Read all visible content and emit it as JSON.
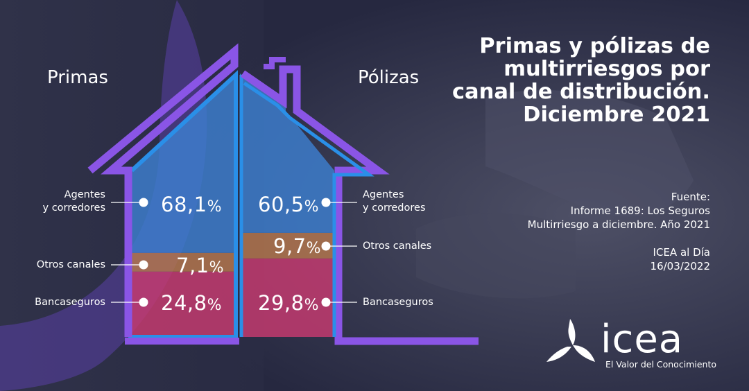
{
  "header": {
    "title_lines": [
      "Primas y pólizas de",
      "multirriesgos por",
      "canal de distribución.",
      "Diciembre 2021"
    ]
  },
  "source": {
    "lines": [
      "Fuente:",
      "Informe 1689: Los Seguros",
      "Multirriesgo a diciembre. Año 2021",
      "",
      "ICEA al Día",
      "16/03/2022"
    ]
  },
  "brand": {
    "name": "icea",
    "tagline": "El Valor del Conocimiento",
    "logo_icon": "tri-blade-icon"
  },
  "colors": {
    "agentes": "#3d7fd0",
    "otros": "#b7774d",
    "bancaseguros": "#c83a70",
    "house_outline": "#8a55e6",
    "house_inner_edge": "#2a8fe8"
  },
  "chart_data": {
    "type": "bar",
    "subtype": "stacked-100",
    "categories": [
      "Primas",
      "Pólizas"
    ],
    "series": [
      {
        "name": "Agentes y corredores",
        "label_lines": [
          "Agentes",
          "y corredores"
        ],
        "values": [
          68.1,
          60.5
        ],
        "labels": [
          "68,1",
          "60,5"
        ]
      },
      {
        "name": "Otros canales",
        "label_lines": [
          "Otros canales"
        ],
        "values": [
          7.1,
          9.7
        ],
        "labels": [
          "7,1",
          "9,7"
        ]
      },
      {
        "name": "Bancaseguros",
        "label_lines": [
          "Bancaseguros"
        ],
        "values": [
          24.8,
          29.8
        ],
        "labels": [
          "24,8",
          "29,8"
        ]
      }
    ],
    "unit": "%",
    "stack_order": "bottom-up: Bancaseguros, Otros canales, Agentes y corredores"
  }
}
